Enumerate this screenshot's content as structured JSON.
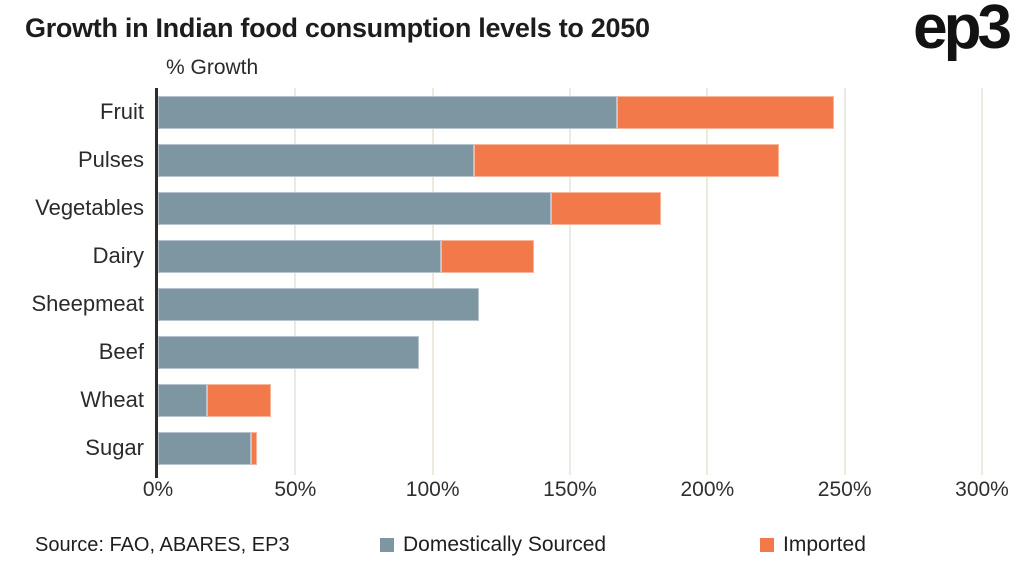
{
  "header": {
    "title": "Growth in Indian food consumption levels to 2050",
    "logo": "ep3",
    "axis_title": "% Growth"
  },
  "chart_data": {
    "type": "bar",
    "orientation": "horizontal",
    "stacked": true,
    "title": "Growth in Indian food consumption levels to 2050",
    "xlabel": "% Growth",
    "categories": [
      "Fruit",
      "Pulses",
      "Vegetables",
      "Dairy",
      "Sheepmeat",
      "Beef",
      "Wheat",
      "Sugar"
    ],
    "series": [
      {
        "name": "Domestically Sourced",
        "color": "#7e95a2",
        "values": [
          167,
          115,
          143,
          103,
          117,
          95,
          18,
          34
        ]
      },
      {
        "name": "Imported",
        "color": "#f2794a",
        "values": [
          79,
          111,
          40,
          34,
          0,
          0,
          23,
          2
        ]
      }
    ],
    "totals": [
      246,
      226,
      183,
      137,
      117,
      95,
      41,
      36
    ],
    "xlim": [
      0,
      300
    ],
    "x_ticks": [
      "0%",
      "50%",
      "100%",
      "150%",
      "200%",
      "250%",
      "300%"
    ],
    "grid": "vertical-gridlines",
    "legend_position": "bottom"
  },
  "footer": {
    "source": "Source: FAO, ABARES, EP3"
  },
  "colors": {
    "domestic": "#7e95a2",
    "imported": "#f2794a",
    "gridline": "#eeeae0",
    "axis": "#2d2d2d",
    "text": "#1d1d1d",
    "background": "#ffffff"
  }
}
